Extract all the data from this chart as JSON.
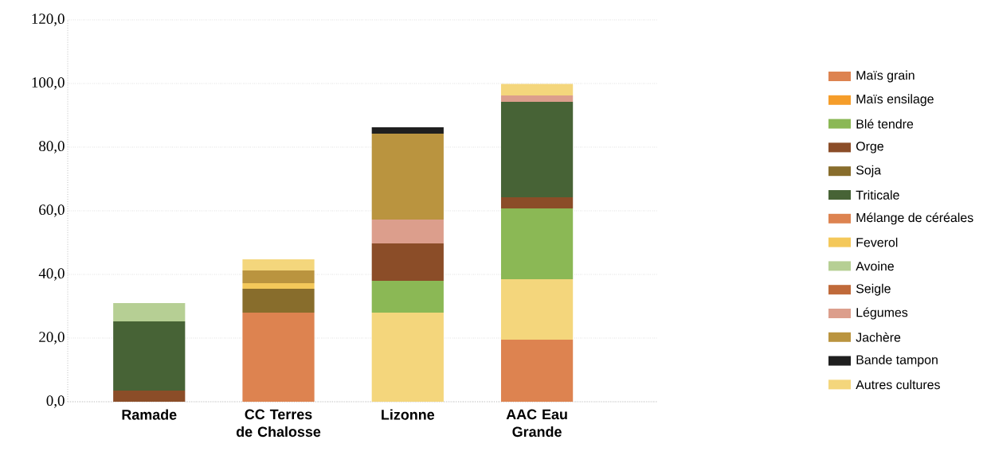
{
  "chart_data": {
    "type": "bar",
    "stacked": true,
    "grid": "y",
    "legend": "right",
    "categories": [
      "Ramade",
      "CC Terres de Chalosse",
      "Lizonne",
      "AAC Eau Grande"
    ],
    "ylim": [
      0,
      120
    ],
    "yticks": [
      {
        "value": 0,
        "label": "0,0"
      },
      {
        "value": 20,
        "label": "20,0"
      },
      {
        "value": 40,
        "label": "40,0"
      },
      {
        "value": 60,
        "label": "60,0"
      },
      {
        "value": 80,
        "label": "80,0"
      },
      {
        "value": 100,
        "label": "100,0"
      },
      {
        "value": 120,
        "label": "120,0"
      }
    ],
    "series": [
      {
        "name": "Maïs grain",
        "color": "#dd8350",
        "values": [
          null,
          28.0,
          null,
          19.5
        ]
      },
      {
        "name": "Maïs ensilage",
        "color": "#f59d2a",
        "values": [
          null,
          null,
          null,
          null
        ]
      },
      {
        "color": "#f4d67c",
        "values": [
          null,
          null,
          28.0,
          19.0
        ]
      },
      {
        "name": "Blé tendre",
        "color": "#8bb855",
        "values": [
          null,
          null,
          10.0,
          22.25
        ]
      },
      {
        "name": "Orge",
        "color": "#8b4d28",
        "values": [
          3.5,
          null,
          11.75,
          3.5
        ]
      },
      {
        "name": "Soja",
        "color": "#886d2c",
        "values": [
          null,
          7.5,
          null,
          null
        ]
      },
      {
        "name": "Triticale",
        "color": "#476336",
        "values": [
          21.75,
          null,
          null,
          30.0
        ]
      },
      {
        "name": "Mélange de céréales",
        "color": "#dd8350",
        "values": [
          null,
          null,
          null,
          null
        ]
      },
      {
        "name": "Feverol",
        "color": "#f4c85a",
        "values": [
          null,
          1.75,
          null,
          null
        ]
      },
      {
        "name": "Avoine",
        "color": "#b6cf94",
        "values": [
          5.75,
          null,
          null,
          null
        ]
      },
      {
        "name": "Seigle",
        "color": "#c06a3a",
        "values": [
          null,
          null,
          null,
          null
        ]
      },
      {
        "name": "Légumes",
        "color": "#dc9e8c",
        "values": [
          null,
          null,
          7.5,
          2.0
        ]
      },
      {
        "name": "Jachère",
        "color": "#ba943f",
        "values": [
          null,
          4.0,
          27.0,
          null
        ]
      },
      {
        "name": "Bande tampon",
        "color": "#1f1f1f",
        "values": [
          null,
          null,
          2.0,
          null
        ]
      },
      {
        "name": "Autres cultures",
        "color": "#f4d67c",
        "values": [
          null,
          3.5,
          null,
          3.6
        ]
      }
    ]
  }
}
